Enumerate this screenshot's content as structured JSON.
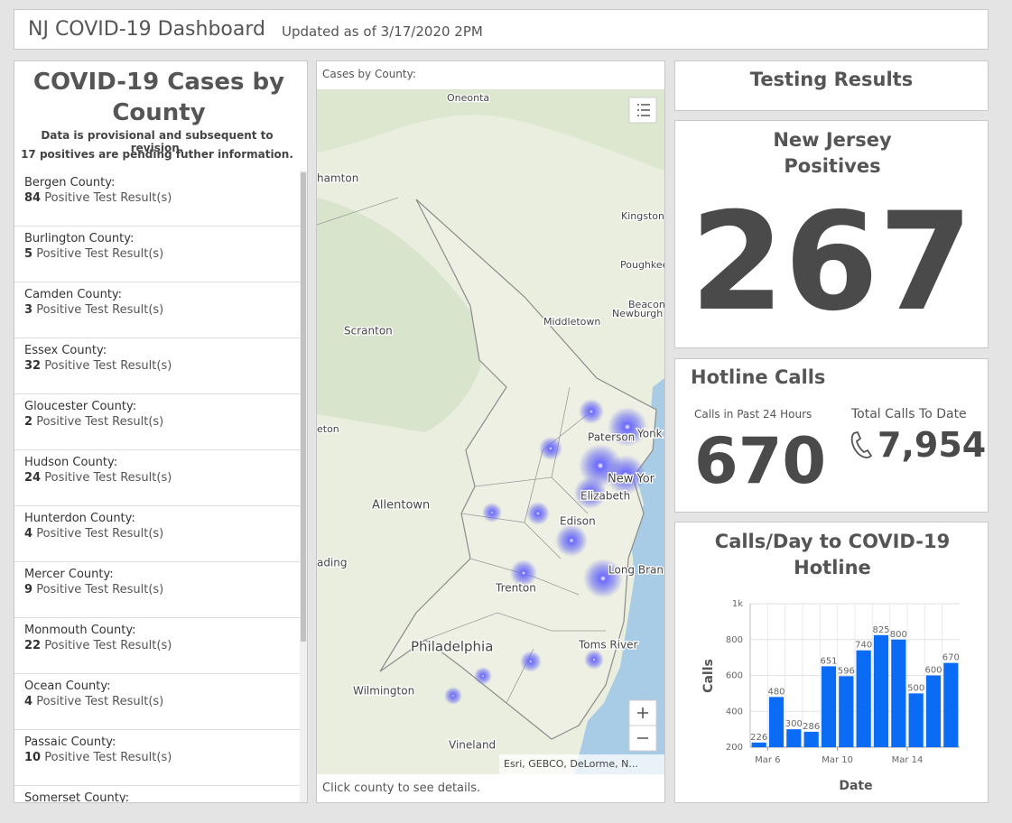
{
  "header": {
    "title": "NJ COVID-19 Dashboard",
    "subtitle": "Updated as of 3/17/2020 2PM"
  },
  "cases_panel": {
    "title": "COVID-19 Cases by County",
    "notes": [
      "Data is provisional and subsequent to revision.",
      "17 positives are pending futher information."
    ],
    "result_suffix": "Positive Test Result(s)",
    "counties": [
      {
        "name": "Bergen County:",
        "count": 84
      },
      {
        "name": "Burlington County:",
        "count": 5
      },
      {
        "name": "Camden County:",
        "count": 3
      },
      {
        "name": "Essex County:",
        "count": 32
      },
      {
        "name": "Gloucester County:",
        "count": 2
      },
      {
        "name": "Hudson County:",
        "count": 24
      },
      {
        "name": "Hunterdon County:",
        "count": 4
      },
      {
        "name": "Mercer County:",
        "count": 9
      },
      {
        "name": "Monmouth County:",
        "count": 22
      },
      {
        "name": "Ocean County:",
        "count": 4
      },
      {
        "name": "Passaic County:",
        "count": 10
      },
      {
        "name": "Somerset County:"
      }
    ]
  },
  "map_panel": {
    "title": "Cases by County:",
    "footer": "Click county to see details.",
    "labels": [
      "Oneonta",
      "hamton",
      "Kingston",
      "Poughkee",
      "Beacon",
      "Newburgh",
      "Middletown",
      "Scranton",
      "eton",
      "Paterson",
      "Yonk",
      "New Yor",
      "Elizabeth",
      "Edison",
      "Allentown",
      "ading",
      "Long Bran",
      "Trenton",
      "Philadelphia",
      "Toms River",
      "Wilmington",
      "Vineland"
    ],
    "attribution": "Esri, GEBCO, DeLorme, N..."
  },
  "testing": {
    "title": "Testing Results"
  },
  "positives": {
    "title": "New Jersey Positives",
    "value": 267
  },
  "hotline": {
    "title": "Hotline Calls",
    "past_label": "Calls in Past 24 Hours",
    "past_value": 670,
    "total_label": "Total Calls To Date",
    "total_value": "7,954"
  },
  "chart_data": {
    "type": "bar",
    "title": "Calls/Day to COVID-19 Hotline",
    "x_label": "Date",
    "y_label": "Calls",
    "categories": [
      null,
      "Mar 6",
      null,
      null,
      null,
      "Mar 10",
      null,
      null,
      null,
      "Mar 14",
      null,
      null
    ],
    "values": [
      226,
      480,
      300,
      286,
      651,
      596,
      740,
      825,
      800,
      500,
      600,
      670
    ],
    "color": "#0a6cf5",
    "ylim": [
      200,
      1000
    ],
    "yticks": [
      200,
      400,
      600,
      800,
      {
        "value": 1000,
        "label": "1k"
      }
    ],
    "grid": true
  }
}
